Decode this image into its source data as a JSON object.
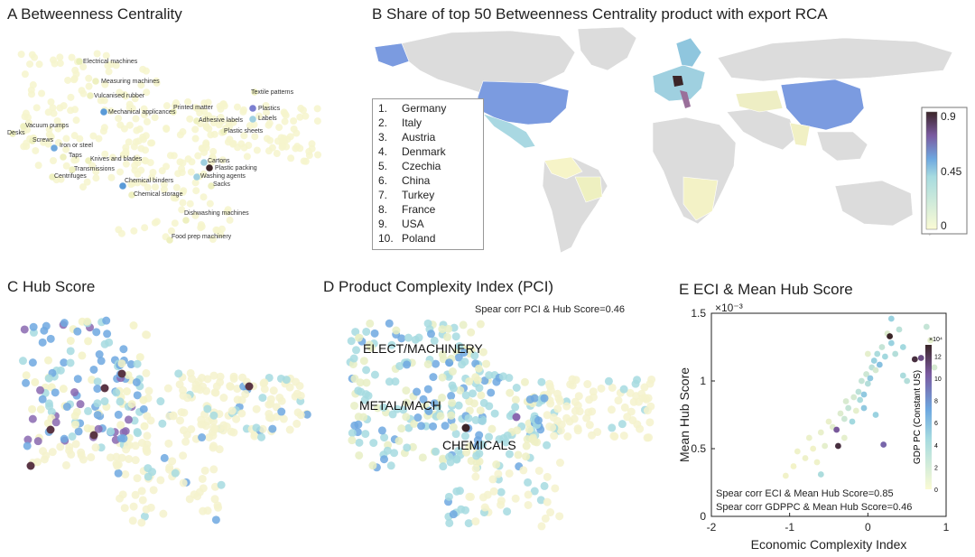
{
  "panels": {
    "A": {
      "title": "A Betweenness Centrality"
    },
    "B": {
      "title": "B Share of top 50 Betweenness Centrality product with export RCA"
    },
    "C": {
      "title": "C Hub Score"
    },
    "D": {
      "title": "D Product Complexity Index (PCI)",
      "annotation": "Spear corr PCI & Hub Score=0.46",
      "regions": [
        "ELECT/MACHINERY",
        "METAL/MACH",
        "CHEMICALS"
      ]
    },
    "E": {
      "title": "E ECI & Mean Hub Score"
    }
  },
  "product_labels": [
    "Electrical machines",
    "Measuring machines",
    "Vulcanised rubber",
    "Mechanical applicances",
    "Printed matter",
    "Textile patterns",
    "Plastics",
    "Labels",
    "Adhesive labels",
    "Plastic sheets",
    "Vacuum pumps",
    "Desks",
    "Screws",
    "Iron or steel",
    "Taps",
    "Knives and blades",
    "Transmissions",
    "Centrifuges",
    "Chemical binders",
    "Chemical storage",
    "Cartons",
    "Plastic packing",
    "Washing agents",
    "Sacks",
    "Dishwashing machines",
    "Food prep machinery"
  ],
  "country_ranking": [
    {
      "rank": "1.",
      "name": "Germany"
    },
    {
      "rank": "2.",
      "name": "Italy"
    },
    {
      "rank": "3.",
      "name": "Austria"
    },
    {
      "rank": "4.",
      "name": "Denmark"
    },
    {
      "rank": "5.",
      "name": "Czechia"
    },
    {
      "rank": "6.",
      "name": "China"
    },
    {
      "rank": "7.",
      "name": "Turkey"
    },
    {
      "rank": "8.",
      "name": "France"
    },
    {
      "rank": "9.",
      "name": "USA"
    },
    {
      "rank": "10.",
      "name": "Poland"
    }
  ],
  "map_colorbar": {
    "ticks": [
      "0.9",
      "0.45",
      "0"
    ],
    "range": [
      0,
      0.9
    ]
  },
  "colors": {
    "low": "#f6f4c8",
    "mid": "#8fd1e0",
    "blue": "#6d9fe0",
    "purple": "#7a5aa0",
    "dark": "#3b2528",
    "grey": "#dcdcdc"
  },
  "chart_data": [
    {
      "type": "scatter",
      "title": "E ECI & Mean Hub Score",
      "xlabel": "Economic Complexity Index",
      "ylabel": "Mean Hub Score",
      "y_multiplier": "×10⁻³",
      "xlim": [
        -2,
        1
      ],
      "ylim": [
        0,
        0.0015
      ],
      "x_ticks": [
        "-2",
        "-1",
        "0",
        "1"
      ],
      "y_ticks": [
        "0",
        "0.5",
        "1",
        "1.5"
      ],
      "colorbar": {
        "label": "GDP PC (Constant US)",
        "multiplier": "×10⁴",
        "ticks": [
          "0",
          "2",
          "4",
          "6",
          "8",
          "10",
          "12"
        ],
        "range": [
          0,
          13
        ]
      },
      "annotations": [
        "Spear corr ECI & Mean Hub Score=0.85",
        "Spear corr GDPPC & Mean Hub Score=0.46"
      ],
      "points": [
        {
          "x": -1.05,
          "y": 0.0003,
          "gdp": 0.3
        },
        {
          "x": -0.95,
          "y": 0.00037,
          "gdp": 0.2
        },
        {
          "x": -0.9,
          "y": 0.00048,
          "gdp": 0.4
        },
        {
          "x": -0.8,
          "y": 0.00043,
          "gdp": 0.5
        },
        {
          "x": -0.75,
          "y": 0.00058,
          "gdp": 0.6
        },
        {
          "x": -0.7,
          "y": 0.0005,
          "gdp": 0.3
        },
        {
          "x": -0.65,
          "y": 0.0004,
          "gdp": 0.4
        },
        {
          "x": -0.6,
          "y": 0.00062,
          "gdp": 0.8
        },
        {
          "x": -0.55,
          "y": 0.00052,
          "gdp": 1.0
        },
        {
          "x": -0.5,
          "y": 0.0007,
          "gdp": 0.7
        },
        {
          "x": -0.45,
          "y": 0.00066,
          "gdp": 1.2
        },
        {
          "x": -0.4,
          "y": 0.00064,
          "gdp": 10.5
        },
        {
          "x": -0.38,
          "y": 0.00052,
          "gdp": 12.5
        },
        {
          "x": -0.35,
          "y": 0.00076,
          "gdp": 1.5
        },
        {
          "x": -0.3,
          "y": 0.00072,
          "gdp": 2.5
        },
        {
          "x": -0.28,
          "y": 0.00085,
          "gdp": 1.8
        },
        {
          "x": -0.25,
          "y": 0.0008,
          "gdp": 3.0
        },
        {
          "x": -0.2,
          "y": 0.0007,
          "gdp": 5.0
        },
        {
          "x": -0.18,
          "y": 0.00088,
          "gdp": 2.0
        },
        {
          "x": -0.15,
          "y": 0.00078,
          "gdp": 1.0
        },
        {
          "x": -0.12,
          "y": 0.00092,
          "gdp": 3.5
        },
        {
          "x": -0.1,
          "y": 0.00086,
          "gdp": 4.5
        },
        {
          "x": -0.08,
          "y": 0.001,
          "gdp": 3.0
        },
        {
          "x": -0.05,
          "y": 0.0009,
          "gdp": 6.0
        },
        {
          "x": -0.02,
          "y": 0.00105,
          "gdp": 2.5
        },
        {
          "x": 0.0,
          "y": 0.00098,
          "gdp": 4.0
        },
        {
          "x": 0.03,
          "y": 0.00102,
          "gdp": 6.0
        },
        {
          "x": 0.05,
          "y": 0.0011,
          "gdp": 3.5
        },
        {
          "x": 0.08,
          "y": 0.00115,
          "gdp": 5.5
        },
        {
          "x": 0.1,
          "y": 0.00108,
          "gdp": 2.0
        },
        {
          "x": 0.12,
          "y": 0.0012,
          "gdp": 4.5
        },
        {
          "x": 0.15,
          "y": 0.00112,
          "gdp": 6.5
        },
        {
          "x": 0.18,
          "y": 0.00125,
          "gdp": 3.0
        },
        {
          "x": 0.2,
          "y": 0.00053,
          "gdp": 10.0
        },
        {
          "x": 0.22,
          "y": 0.00118,
          "gdp": 5.0
        },
        {
          "x": 0.25,
          "y": 0.00135,
          "gdp": 1.5
        },
        {
          "x": 0.28,
          "y": 0.00133,
          "gdp": 13.0
        },
        {
          "x": 0.3,
          "y": 0.00128,
          "gdp": 5.5
        },
        {
          "x": 0.35,
          "y": 0.0012,
          "gdp": 4.0
        },
        {
          "x": 0.4,
          "y": 0.00138,
          "gdp": 3.5
        },
        {
          "x": 0.45,
          "y": 0.00125,
          "gdp": 5.0
        },
        {
          "x": 0.5,
          "y": 0.001,
          "gdp": 4.0
        },
        {
          "x": 0.6,
          "y": 0.00116,
          "gdp": 12.5
        },
        {
          "x": 0.68,
          "y": 0.00117,
          "gdp": 11.0
        },
        {
          "x": 0.75,
          "y": 0.0014,
          "gdp": 3.0
        },
        {
          "x": 0.8,
          "y": 0.0013,
          "gdp": 1.0
        },
        {
          "x": 0.85,
          "y": 0.0011,
          "gdp": 2.0
        },
        {
          "x": -0.6,
          "y": 0.00031,
          "gdp": 4.5
        },
        {
          "x": -0.3,
          "y": 0.00058,
          "gdp": 1.0
        },
        {
          "x": 0.1,
          "y": 0.00075,
          "gdp": 5.5
        },
        {
          "x": 0.0,
          "y": 0.0012,
          "gdp": 1.0
        },
        {
          "x": 0.3,
          "y": 0.00146,
          "gdp": 5.5
        },
        {
          "x": -0.05,
          "y": 0.0008,
          "gdp": 6.0
        },
        {
          "x": 0.45,
          "y": 0.00104,
          "gdp": 4.5
        }
      ]
    }
  ]
}
